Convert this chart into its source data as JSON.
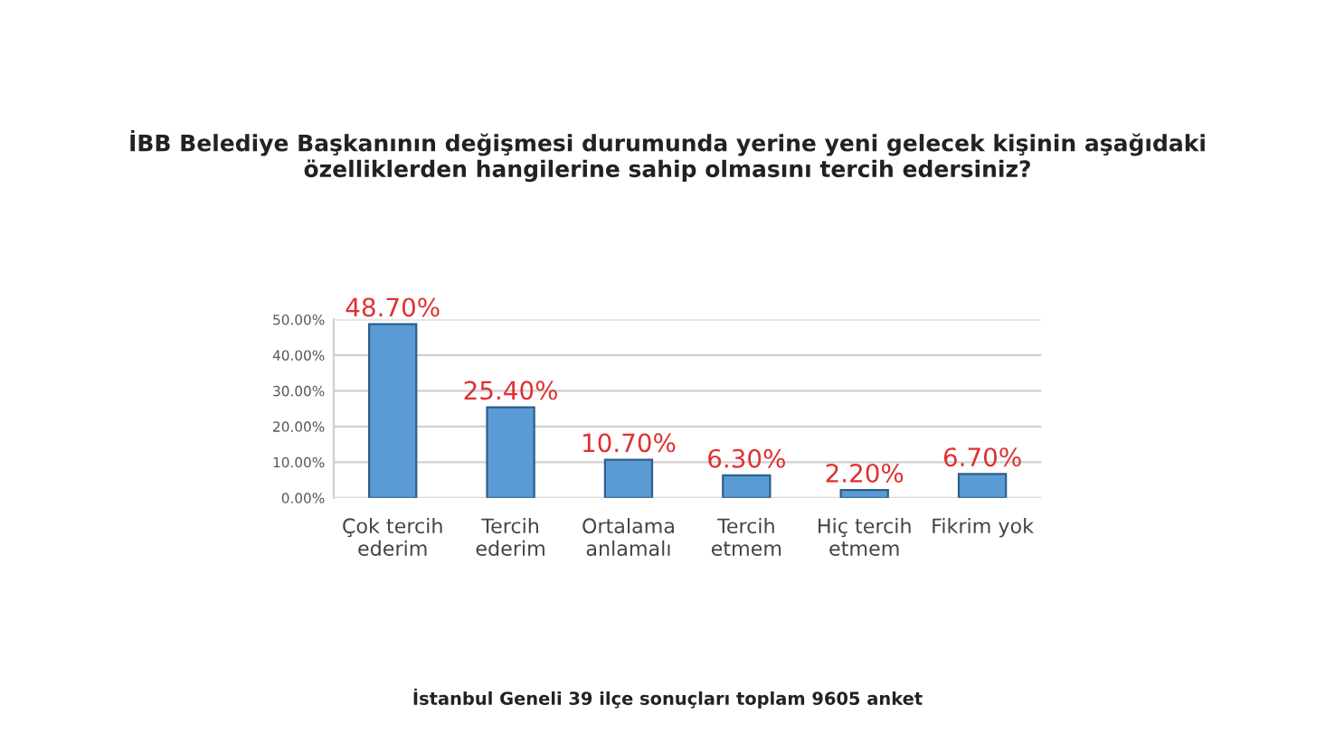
{
  "chart_data": {
    "type": "bar",
    "title": "İBB Belediye Başkanının değişmesi durumunda yerine yeni gelecek kişinin aşağıdaki\nözelliklerden hangilerine sahip olmasını tercih edersiniz?",
    "categories": [
      "Çok tercih\nederim",
      "Tercih\nederim",
      "Ortalama\nanlamalı",
      "Tercih\netmem",
      "Hiç tercih\netmem",
      "Fikrim yok"
    ],
    "values": [
      48.7,
      25.4,
      10.7,
      6.3,
      2.2,
      6.7
    ],
    "value_labels": [
      "48.70%",
      "25.40%",
      "10.70%",
      "6.30%",
      "2.20%",
      "6.70%"
    ],
    "color": "#5b9bd5",
    "ylim": [
      0,
      50
    ],
    "yticks": [
      {
        "value": 0,
        "label": "0.00%"
      },
      {
        "value": 10,
        "label": "10.00%"
      },
      {
        "value": 20,
        "label": "20.00%"
      },
      {
        "value": 30,
        "label": "30.00%"
      },
      {
        "value": 40,
        "label": "40.00%"
      },
      {
        "value": 50,
        "label": "50.00%"
      }
    ],
    "grid": "y",
    "annotations": [
      "İstanbul Geneli 39 ilçe sonuçları toplam 9605 anket"
    ]
  }
}
